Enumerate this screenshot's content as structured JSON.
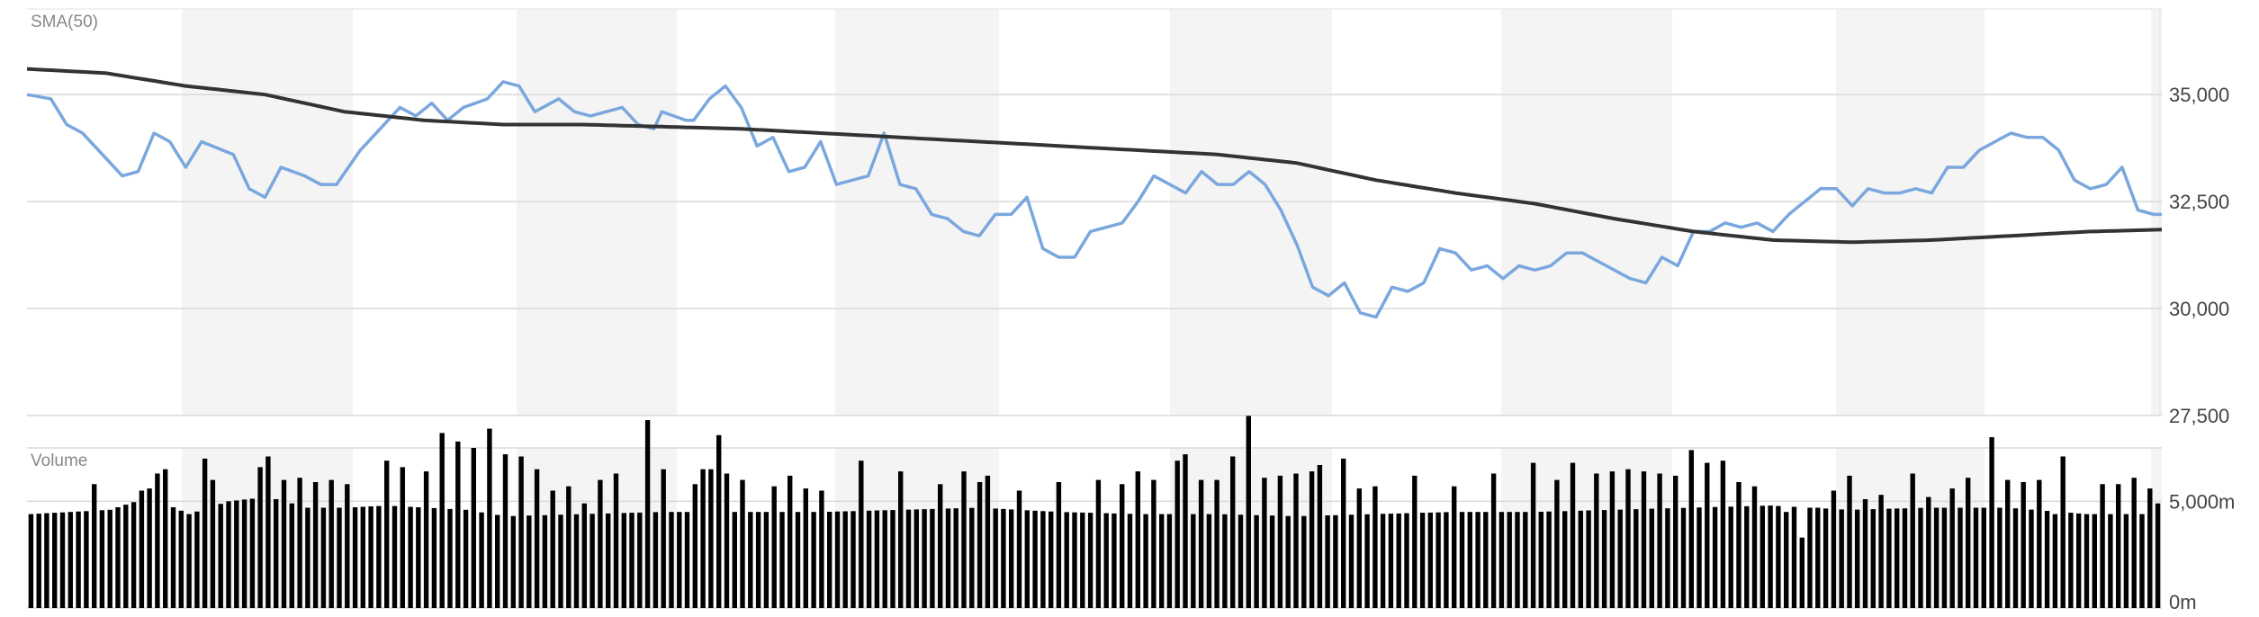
{
  "chart_data": [
    {
      "type": "line",
      "title": "SMA(50)",
      "ylim": [
        27500,
        37000
      ],
      "y_ticks": [
        "27,500",
        "30,000",
        "32,500",
        "35,000"
      ],
      "y_tick_values": [
        27500,
        30000,
        32500,
        35000
      ],
      "grid": true,
      "x_count": 270,
      "series": [
        {
          "color": "#7aa7dd",
          "anchors": [
            [
              0,
              35000
            ],
            [
              3,
              34900
            ],
            [
              5,
              34300
            ],
            [
              7,
              34100
            ],
            [
              10,
              33500
            ],
            [
              12,
              33100
            ],
            [
              14,
              33200
            ],
            [
              16,
              34100
            ],
            [
              18,
              33900
            ],
            [
              20,
              33300
            ],
            [
              22,
              33900
            ],
            [
              26,
              33600
            ],
            [
              28,
              32800
            ],
            [
              30,
              32600
            ],
            [
              32,
              33300
            ],
            [
              35,
              33100
            ],
            [
              37,
              32900
            ],
            [
              39,
              32900
            ],
            [
              42,
              33700
            ],
            [
              45,
              34300
            ],
            [
              47,
              34700
            ],
            [
              49,
              34500
            ],
            [
              51,
              34800
            ],
            [
              53,
              34400
            ],
            [
              55,
              34700
            ],
            [
              58,
              34900
            ],
            [
              60,
              35300
            ],
            [
              62,
              35200
            ],
            [
              64,
              34600
            ],
            [
              67,
              34900
            ],
            [
              69,
              34600
            ],
            [
              71,
              34500
            ],
            [
              73,
              34600
            ],
            [
              75,
              34700
            ],
            [
              77,
              34300
            ],
            [
              79,
              34200
            ],
            [
              80,
              34600
            ],
            [
              83,
              34400
            ],
            [
              84,
              34400
            ],
            [
              86,
              34900
            ],
            [
              88,
              35200
            ],
            [
              90,
              34700
            ],
            [
              92,
              33800
            ],
            [
              94,
              34000
            ],
            [
              96,
              33200
            ],
            [
              98,
              33300
            ],
            [
              100,
              33900
            ],
            [
              102,
              32900
            ],
            [
              104,
              33000
            ],
            [
              106,
              33100
            ],
            [
              108,
              34100
            ],
            [
              110,
              32900
            ],
            [
              112,
              32800
            ],
            [
              114,
              32200
            ],
            [
              116,
              32100
            ],
            [
              118,
              31800
            ],
            [
              120,
              31700
            ],
            [
              122,
              32200
            ],
            [
              124,
              32200
            ],
            [
              126,
              32600
            ],
            [
              128,
              31400
            ],
            [
              130,
              31200
            ],
            [
              132,
              31200
            ],
            [
              134,
              31800
            ],
            [
              136,
              31900
            ],
            [
              138,
              32000
            ],
            [
              140,
              32500
            ],
            [
              142,
              33100
            ],
            [
              144,
              32900
            ],
            [
              146,
              32700
            ],
            [
              148,
              33200
            ],
            [
              150,
              32900
            ],
            [
              152,
              32900
            ],
            [
              154,
              33200
            ],
            [
              156,
              32900
            ],
            [
              158,
              32300
            ],
            [
              160,
              31500
            ],
            [
              162,
              30500
            ],
            [
              164,
              30300
            ],
            [
              166,
              30600
            ],
            [
              168,
              29900
            ],
            [
              170,
              29800
            ],
            [
              172,
              30500
            ],
            [
              174,
              30400
            ],
            [
              176,
              30600
            ],
            [
              178,
              31400
            ],
            [
              180,
              31300
            ],
            [
              182,
              30900
            ],
            [
              184,
              31000
            ],
            [
              186,
              30700
            ],
            [
              188,
              31000
            ],
            [
              190,
              30900
            ],
            [
              192,
              31000
            ],
            [
              194,
              31300
            ],
            [
              196,
              31300
            ],
            [
              198,
              31100
            ],
            [
              200,
              30900
            ],
            [
              202,
              30700
            ],
            [
              204,
              30600
            ],
            [
              206,
              31200
            ],
            [
              208,
              31000
            ],
            [
              210,
              31800
            ],
            [
              212,
              31800
            ],
            [
              214,
              32000
            ],
            [
              216,
              31900
            ],
            [
              218,
              32000
            ],
            [
              220,
              31800
            ],
            [
              222,
              32200
            ],
            [
              224,
              32500
            ],
            [
              226,
              32800
            ],
            [
              228,
              32800
            ],
            [
              230,
              32400
            ],
            [
              232,
              32800
            ],
            [
              234,
              32700
            ],
            [
              236,
              32700
            ],
            [
              238,
              32800
            ],
            [
              240,
              32700
            ],
            [
              242,
              33300
            ],
            [
              244,
              33300
            ],
            [
              246,
              33700
            ],
            [
              248,
              33900
            ],
            [
              250,
              34100
            ],
            [
              252,
              34000
            ],
            [
              254,
              34000
            ],
            [
              256,
              33700
            ],
            [
              258,
              33000
            ],
            [
              260,
              32800
            ],
            [
              262,
              32900
            ],
            [
              264,
              33300
            ],
            [
              266,
              32300
            ],
            [
              268,
              32200
            ]
          ]
        },
        {
          "color": "#333333",
          "anchors": [
            [
              0,
              35600
            ],
            [
              10,
              35500
            ],
            [
              20,
              35200
            ],
            [
              30,
              35000
            ],
            [
              40,
              34600
            ],
            [
              50,
              34400
            ],
            [
              60,
              34300
            ],
            [
              70,
              34300
            ],
            [
              80,
              34250
            ],
            [
              90,
              34200
            ],
            [
              100,
              34100
            ],
            [
              110,
              34000
            ],
            [
              120,
              33900
            ],
            [
              130,
              33800
            ],
            [
              140,
              33700
            ],
            [
              150,
              33600
            ],
            [
              160,
              33400
            ],
            [
              170,
              33000
            ],
            [
              180,
              32700
            ],
            [
              190,
              32450
            ],
            [
              200,
              32100
            ],
            [
              210,
              31800
            ],
            [
              220,
              31600
            ],
            [
              230,
              31550
            ],
            [
              240,
              31600
            ],
            [
              250,
              31700
            ],
            [
              260,
              31800
            ],
            [
              270,
              31850
            ]
          ]
        }
      ]
    },
    {
      "type": "bar",
      "title": "Volume",
      "ylim": [
        0,
        7500
      ],
      "y_ticks": [
        "0m",
        "5,000m"
      ],
      "y_tick_values": [
        0,
        5000
      ],
      "grid": true,
      "color": "#000000",
      "count": 270,
      "anchors": [
        [
          0,
          4400
        ],
        [
          10,
          4600
        ],
        [
          15,
          5200
        ],
        [
          20,
          4400
        ],
        [
          25,
          5000
        ],
        [
          30,
          5200
        ],
        [
          35,
          4700
        ],
        [
          40,
          4700
        ],
        [
          45,
          4800
        ],
        [
          50,
          4700
        ],
        [
          55,
          4600
        ],
        [
          60,
          4300
        ],
        [
          70,
          4400
        ],
        [
          80,
          4500
        ],
        [
          90,
          4500
        ],
        [
          100,
          4500
        ],
        [
          110,
          4600
        ],
        [
          120,
          4700
        ],
        [
          130,
          4500
        ],
        [
          140,
          4400
        ],
        [
          150,
          4400
        ],
        [
          160,
          4300
        ],
        [
          170,
          4400
        ],
        [
          180,
          4500
        ],
        [
          190,
          4500
        ],
        [
          200,
          4600
        ],
        [
          210,
          4700
        ],
        [
          220,
          4800
        ],
        [
          230,
          4600
        ],
        [
          240,
          4700
        ],
        [
          250,
          4700
        ],
        [
          260,
          4400
        ],
        [
          269,
          4400
        ]
      ],
      "spikes": [
        [
          8,
          5800
        ],
        [
          14,
          5500
        ],
        [
          15,
          5600
        ],
        [
          16,
          6300
        ],
        [
          17,
          6500
        ],
        [
          22,
          7000
        ],
        [
          23,
          6000
        ],
        [
          29,
          6600
        ],
        [
          30,
          7100
        ],
        [
          32,
          6000
        ],
        [
          34,
          6100
        ],
        [
          36,
          5900
        ],
        [
          38,
          6000
        ],
        [
          40,
          5800
        ],
        [
          45,
          6900
        ],
        [
          47,
          6600
        ],
        [
          50,
          6400
        ],
        [
          52,
          8200
        ],
        [
          54,
          7800
        ],
        [
          56,
          7500
        ],
        [
          58,
          8400
        ],
        [
          60,
          7200
        ],
        [
          62,
          7100
        ],
        [
          64,
          6500
        ],
        [
          66,
          5500
        ],
        [
          68,
          5700
        ],
        [
          70,
          4900
        ],
        [
          72,
          6000
        ],
        [
          74,
          6300
        ],
        [
          78,
          8800
        ],
        [
          80,
          6500
        ],
        [
          84,
          5800
        ],
        [
          85,
          6500
        ],
        [
          86,
          6500
        ],
        [
          87,
          8100
        ],
        [
          88,
          6300
        ],
        [
          90,
          6000
        ],
        [
          94,
          5700
        ],
        [
          96,
          6200
        ],
        [
          98,
          5600
        ],
        [
          100,
          5500
        ],
        [
          105,
          6900
        ],
        [
          110,
          6400
        ],
        [
          115,
          5800
        ],
        [
          118,
          6400
        ],
        [
          120,
          5900
        ],
        [
          121,
          6200
        ],
        [
          125,
          5500
        ],
        [
          130,
          5900
        ],
        [
          135,
          6000
        ],
        [
          138,
          5800
        ],
        [
          140,
          6400
        ],
        [
          142,
          6000
        ],
        [
          145,
          6900
        ],
        [
          146,
          7200
        ],
        [
          148,
          6000
        ],
        [
          150,
          6000
        ],
        [
          152,
          7100
        ],
        [
          154,
          9000
        ],
        [
          156,
          6100
        ],
        [
          158,
          6200
        ],
        [
          160,
          6300
        ],
        [
          162,
          6400
        ],
        [
          163,
          6700
        ],
        [
          166,
          7000
        ],
        [
          168,
          5600
        ],
        [
          170,
          5700
        ],
        [
          175,
          6200
        ],
        [
          180,
          5700
        ],
        [
          185,
          6300
        ],
        [
          190,
          6800
        ],
        [
          193,
          6000
        ],
        [
          195,
          6800
        ],
        [
          198,
          6300
        ],
        [
          200,
          6400
        ],
        [
          202,
          6500
        ],
        [
          204,
          6400
        ],
        [
          206,
          6300
        ],
        [
          208,
          6200
        ],
        [
          210,
          7400
        ],
        [
          212,
          6800
        ],
        [
          214,
          6900
        ],
        [
          216,
          5900
        ],
        [
          218,
          5700
        ],
        [
          222,
          4500
        ],
        [
          224,
          3300
        ],
        [
          226,
          4700
        ],
        [
          228,
          5500
        ],
        [
          230,
          6200
        ],
        [
          232,
          5100
        ],
        [
          234,
          5300
        ],
        [
          238,
          6300
        ],
        [
          240,
          5200
        ],
        [
          243,
          5600
        ],
        [
          245,
          6100
        ],
        [
          248,
          8000
        ],
        [
          250,
          6000
        ],
        [
          252,
          5900
        ],
        [
          254,
          6000
        ],
        [
          256,
          4400
        ],
        [
          257,
          7100
        ],
        [
          262,
          5800
        ],
        [
          264,
          5800
        ],
        [
          266,
          6100
        ],
        [
          268,
          5600
        ],
        [
          269,
          4900
        ]
      ]
    }
  ]
}
